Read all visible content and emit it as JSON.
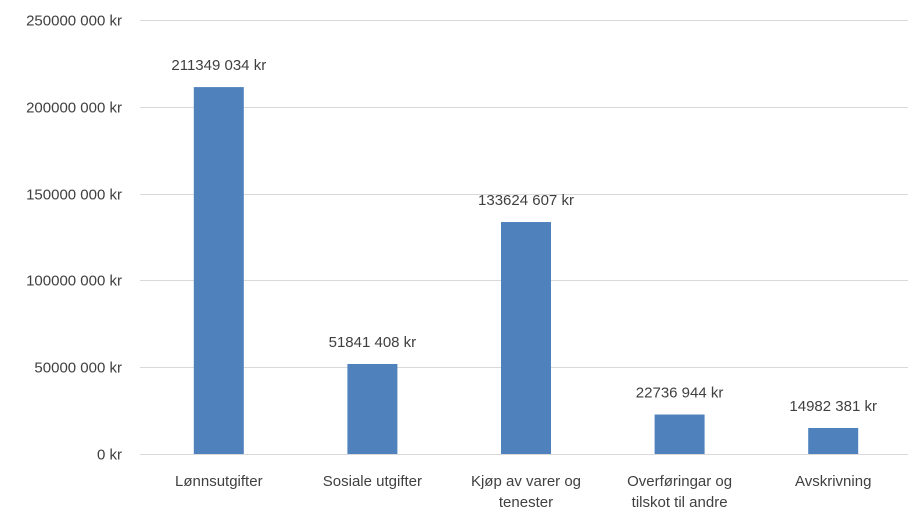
{
  "chart_data": {
    "type": "bar",
    "title": "",
    "xlabel": "",
    "ylabel": "",
    "categories": [
      [
        "Lønnsutgifter"
      ],
      [
        "Sosiale utgifter"
      ],
      [
        "Kjøp av varer og",
        "tenester"
      ],
      [
        "Overføringar og",
        "tilskot til andre"
      ],
      [
        "Avskrivning"
      ]
    ],
    "values": [
      211349034,
      51841408,
      133624607,
      22736944,
      14982381
    ],
    "data_labels": [
      "211349 034 kr",
      "51841 408 kr",
      "133624 607 kr",
      "22736 944 kr",
      "14982 381 kr"
    ],
    "ylim": [
      0,
      250000000
    ],
    "yticks": [
      0,
      50000000,
      100000000,
      150000000,
      200000000,
      250000000
    ],
    "ytick_labels": [
      "0 kr",
      "50000 000 kr",
      "100000 000 kr",
      "150000 000 kr",
      "200000 000 kr",
      "250000 000 kr"
    ],
    "grid": true,
    "legend": "none",
    "bar_color": "#4f81bd",
    "grid_color": "#d9d9d9",
    "text_color": "#404040"
  }
}
